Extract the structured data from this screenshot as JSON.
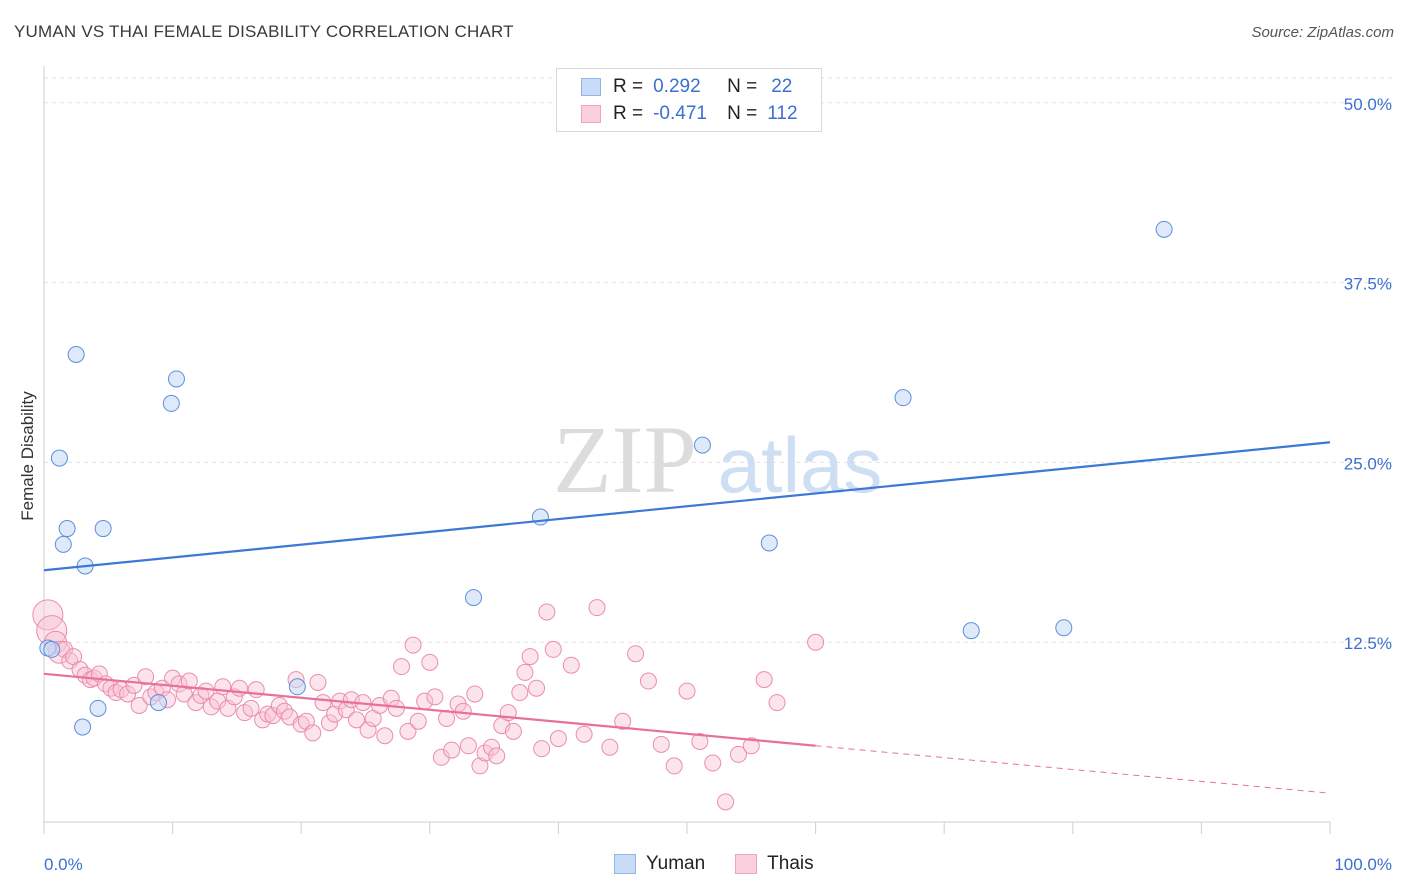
{
  "header": {
    "title": "YUMAN VS THAI FEMALE DISABILITY CORRELATION CHART",
    "source": "Source: ZipAtlas.com"
  },
  "watermark": {
    "zip": "ZIP",
    "atlas": "atlas"
  },
  "legend": {
    "rows": [
      {
        "r_label": "R =",
        "r_value": "0.292",
        "n_label": "N =",
        "n_value": "22",
        "color": "#8fb4ea",
        "fill": "#c8dbf7"
      },
      {
        "r_label": "R =",
        "r_value": "-0.471",
        "n_label": "N =",
        "n_value": "112",
        "color": "#f2a3bd",
        "fill": "#fbd0de"
      }
    ],
    "bottom": [
      {
        "label": "Yuman",
        "color": "#8fb4ea",
        "fill": "#c8dbf7"
      },
      {
        "label": "Thais",
        "color": "#f2a3bd",
        "fill": "#fbd0de"
      }
    ]
  },
  "chart_data": {
    "type": "scatter",
    "title": "YUMAN VS THAI FEMALE DISABILITY CORRELATION CHART",
    "xlabel": "",
    "ylabel": "Female Disability",
    "xlim": [
      0,
      100
    ],
    "ylim": [
      0,
      52
    ],
    "x_tick_labels": [
      "0.0%",
      "100.0%"
    ],
    "y_ticks": [
      12.5,
      25.0,
      37.5,
      50.0
    ],
    "y_tick_labels": [
      "12.5%",
      "25.0%",
      "37.5%",
      "50.0%"
    ],
    "grid": true,
    "colors": {
      "yuman": "#3c78d8",
      "thais": "#e8709a",
      "tick_label": "#3c6fd1"
    },
    "series": [
      {
        "name": "Yuman",
        "x": [
          0.3,
          2.5,
          1.2,
          1.8,
          1.5,
          3.2,
          4.6,
          3.0,
          4.2,
          9.9,
          10.3,
          8.9,
          19.7,
          33.4,
          38.6,
          51.2,
          56.4,
          66.8,
          72.1,
          79.3,
          87.1,
          0.6
        ],
        "y": [
          12.1,
          32.5,
          25.3,
          20.4,
          19.3,
          17.8,
          20.4,
          6.6,
          7.9,
          29.1,
          30.8,
          8.3,
          9.4,
          15.6,
          21.2,
          26.2,
          19.4,
          29.5,
          13.3,
          13.5,
          41.2,
          12.0
        ]
      },
      {
        "name": "Thais",
        "x": [
          0.3,
          0.6,
          0.9,
          1.2,
          1.6,
          2.0,
          2.3,
          2.8,
          3.2,
          3.6,
          3.9,
          4.3,
          4.8,
          5.2,
          5.6,
          6.0,
          6.5,
          7.0,
          7.4,
          7.9,
          8.3,
          8.7,
          9.2,
          9.6,
          10.0,
          10.5,
          10.9,
          11.3,
          11.8,
          12.2,
          12.6,
          13.0,
          13.5,
          13.9,
          14.3,
          14.8,
          15.2,
          15.6,
          16.1,
          16.5,
          17.0,
          17.4,
          17.8,
          18.3,
          18.7,
          19.1,
          19.6,
          20.0,
          20.4,
          20.9,
          21.3,
          21.7,
          22.2,
          22.6,
          23.0,
          23.5,
          23.9,
          24.3,
          24.8,
          25.2,
          25.6,
          26.1,
          26.5,
          27.0,
          27.4,
          27.8,
          28.3,
          28.7,
          29.1,
          29.6,
          30.0,
          30.4,
          30.9,
          31.3,
          31.7,
          32.2,
          32.6,
          33.0,
          33.5,
          33.9,
          34.3,
          34.8,
          35.2,
          35.6,
          36.1,
          36.5,
          37.0,
          37.4,
          37.8,
          38.3,
          38.7,
          39.1,
          39.6,
          40.0,
          41.0,
          42.0,
          43.0,
          44.0,
          45.0,
          46.0,
          47.0,
          48.0,
          49.0,
          50.0,
          51.0,
          52.0,
          53.0,
          54.0,
          55.0,
          56.0,
          57.0,
          60.0
        ],
        "y": [
          14.4,
          13.3,
          12.5,
          11.8,
          12.0,
          11.2,
          11.5,
          10.6,
          10.2,
          9.9,
          10.0,
          10.3,
          9.6,
          9.3,
          9.0,
          9.2,
          8.9,
          9.5,
          8.1,
          10.1,
          8.7,
          9.0,
          9.3,
          8.5,
          10.0,
          9.6,
          8.9,
          9.8,
          8.3,
          8.8,
          9.1,
          8.0,
          8.4,
          9.4,
          7.9,
          8.7,
          9.3,
          7.6,
          7.9,
          9.2,
          7.1,
          7.5,
          7.4,
          8.1,
          7.7,
          7.3,
          9.9,
          6.8,
          7.0,
          6.2,
          9.7,
          8.3,
          6.9,
          7.5,
          8.4,
          7.8,
          8.5,
          7.1,
          8.3,
          6.4,
          7.2,
          8.1,
          6.0,
          8.6,
          7.9,
          10.8,
          6.3,
          12.3,
          7.0,
          8.4,
          11.1,
          8.7,
          4.5,
          7.2,
          5.0,
          8.2,
          7.7,
          5.3,
          8.9,
          3.9,
          4.8,
          5.2,
          4.6,
          6.7,
          7.6,
          6.3,
          9.0,
          10.4,
          11.5,
          9.3,
          5.1,
          14.6,
          12.0,
          5.8,
          10.9,
          6.1,
          14.9,
          5.2,
          7.0,
          11.7,
          9.8,
          5.4,
          3.9,
          9.1,
          5.6,
          4.1,
          1.4,
          4.7,
          5.3,
          9.9,
          8.3,
          12.5
        ]
      }
    ],
    "trendlines": [
      {
        "series": "Yuman",
        "x": [
          0,
          100
        ],
        "y": [
          17.5,
          26.4
        ],
        "style": "solid"
      },
      {
        "series": "Thais",
        "x": [
          0,
          60
        ],
        "y": [
          10.3,
          5.3
        ],
        "style": "solid"
      },
      {
        "series": "Thais",
        "x": [
          60,
          100
        ],
        "y": [
          5.3,
          2.0
        ],
        "style": "dashed"
      }
    ]
  }
}
